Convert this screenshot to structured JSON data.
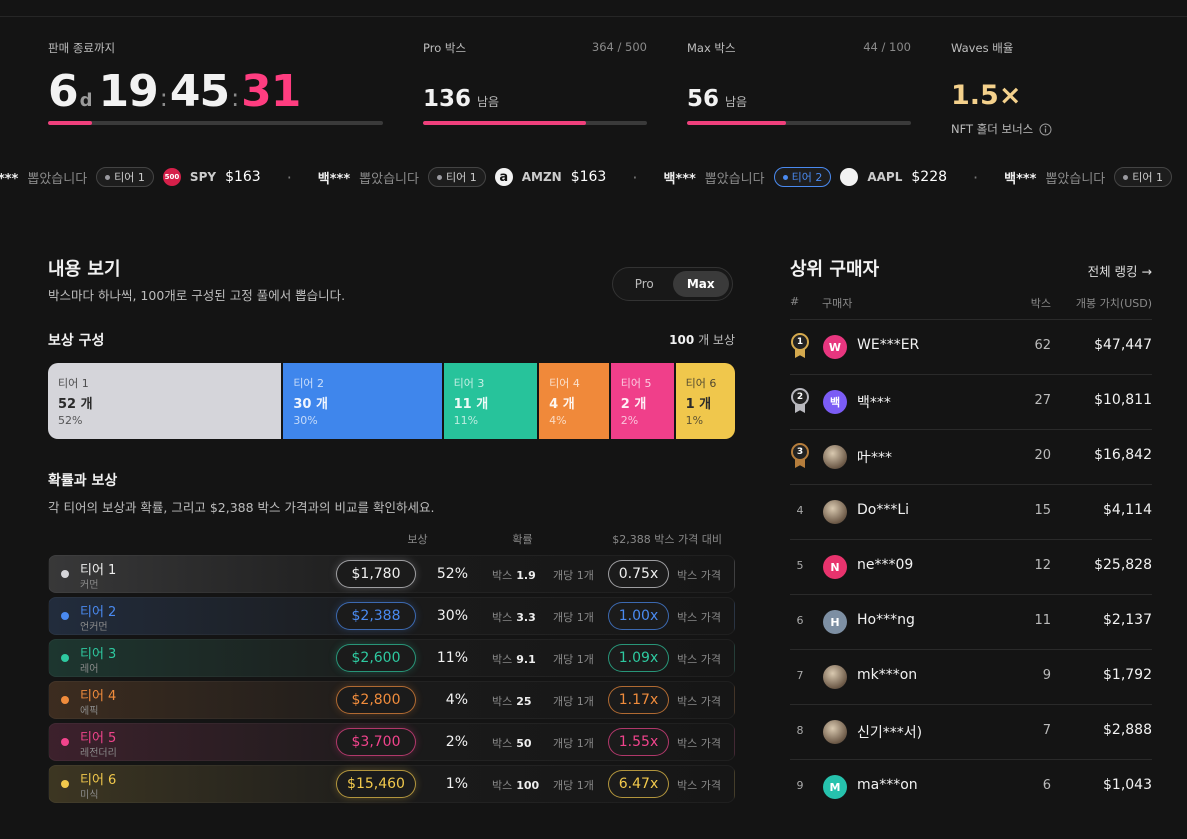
{
  "header": {
    "countdown": {
      "label": "판매 종료까지",
      "days": "6",
      "days_unit": "d",
      "hours": "19",
      "separator": ":",
      "minutes": "45",
      "seconds": "31"
    },
    "pro": {
      "label": "Pro 박스",
      "sold": 364,
      "of": "/",
      "total": 500,
      "remaining": 136,
      "remaining_unit": "남음"
    },
    "max": {
      "label": "Max 박스",
      "sold": 44,
      "of": "/",
      "total": 100,
      "remaining": 56,
      "remaining_unit": "남음"
    },
    "waves": {
      "label": "Waves 배율",
      "multiplier": "1.5×",
      "note": "NFT 홀더 보너스"
    }
  },
  "ticker": {
    "separator": "·",
    "items": [
      {
        "user": "백***",
        "action": "뽑았습니다",
        "tier": "티어 1",
        "tier_color": "#9a9aa0",
        "logo": "500",
        "logo_color": "#d6204a",
        "symbol": "SPY",
        "price": "$163"
      },
      {
        "user": "백***",
        "action": "뽑았습니다",
        "tier": "티어 1",
        "tier_color": "#9a9aa0",
        "logo": "a",
        "logo_color": "#f2f2f2",
        "symbol": "AMZN",
        "price": "$163"
      },
      {
        "user": "백***",
        "action": "뽑았습니다",
        "tier": "티어 2",
        "tier_color": "#4a8af0",
        "logo_color": "#f2f2f2",
        "symbol": "AAPL",
        "price": "$228"
      },
      {
        "user": "백***",
        "action": "뽑았습니다",
        "tier": "티어 1",
        "tier_color": "#9a9aa0"
      }
    ]
  },
  "contents": {
    "title": "내용 보기",
    "subtitle": "박스마다 하나씩, 100개로 구성된 고정 풀에서 뽑습니다.",
    "toggle": [
      "Pro",
      "Max"
    ],
    "composition": {
      "title": "보상 구성",
      "total": 100,
      "total_unit": "개 보상",
      "count_unit": "개",
      "segments": [
        {
          "tier": "티어 1",
          "count": 52,
          "share": "52%",
          "color": "#d5d5da"
        },
        {
          "tier": "티어 2",
          "count": 30,
          "share": "30%",
          "color": "#3f86ec"
        },
        {
          "tier": "티어 3",
          "count": 11,
          "share": "11%",
          "color": "#27c39b"
        },
        {
          "tier": "티어 4",
          "count": 4,
          "share": "4%",
          "color": "#f0893a"
        },
        {
          "tier": "티어 5",
          "count": 2,
          "share": "2%",
          "color": "#f03f8a"
        },
        {
          "tier": "티어 6",
          "count": 1,
          "share": "1%",
          "color": "#f0c74c"
        }
      ]
    }
  },
  "odds": {
    "title": "확률과 보상",
    "subtitle": "각 티어의 보상과 확률, 그리고 $2,388 박스 가격과의 비교를 확인하세요.",
    "columns": [
      "보상",
      "확률",
      "$2,388 박스 가격 대비"
    ],
    "box_label": "박스",
    "per_label": "개당 1개",
    "ratio_label": "박스 가격",
    "rows": [
      {
        "tier": "티어 1",
        "rarity": "커먼",
        "reward": "$1,780",
        "probability": "52%",
        "boxes": "1.9",
        "ratio": "0.75x",
        "color": "#d5d5da"
      },
      {
        "tier": "티어 2",
        "rarity": "언커먼",
        "reward": "$2,388",
        "probability": "30%",
        "boxes": "3.3",
        "ratio": "1.00x",
        "color": "#4a8af0"
      },
      {
        "tier": "티어 3",
        "rarity": "레어",
        "reward": "$2,600",
        "probability": "11%",
        "boxes": "9.1",
        "ratio": "1.09x",
        "color": "#2ec9a0"
      },
      {
        "tier": "티어 4",
        "rarity": "에픽",
        "reward": "$2,800",
        "probability": "4%",
        "boxes": "25",
        "ratio": "1.17x",
        "color": "#f08c3c"
      },
      {
        "tier": "티어 5",
        "rarity": "레전더리",
        "reward": "$3,700",
        "probability": "2%",
        "boxes": "50",
        "ratio": "1.55x",
        "color": "#f0448c"
      },
      {
        "tier": "티어 6",
        "rarity": "미식",
        "reward": "$15,460",
        "probability": "1%",
        "boxes": "100",
        "ratio": "6.47x",
        "color": "#f2c94c"
      }
    ]
  },
  "ranking": {
    "title": "상위 구매자",
    "link": "전체 랭킹 →",
    "columns": [
      "#",
      "구매자",
      "박스",
      "개봉 가치(USD)"
    ],
    "rows": [
      {
        "rank": 1,
        "avatar": "W",
        "avatar_color": "#e8367f",
        "name": "WE***ER",
        "boxes": 62,
        "value": "$47,447"
      },
      {
        "rank": 2,
        "avatar": "백",
        "avatar_color": "#7b5cf5",
        "name": "백***",
        "boxes": 27,
        "value": "$10,811"
      },
      {
        "rank": 3,
        "name": "叶***",
        "boxes": 20,
        "value": "$16,842"
      },
      {
        "rank": 4,
        "name": "Do***Li",
        "boxes": 15,
        "value": "$4,114"
      },
      {
        "rank": 5,
        "avatar": "N",
        "avatar_color": "#e8336d",
        "name": "ne***09",
        "boxes": 12,
        "value": "$25,828"
      },
      {
        "rank": 6,
        "avatar": "H",
        "avatar_color": "#7d8fa3",
        "name": "Ho***ng",
        "boxes": 11,
        "value": "$2,137"
      },
      {
        "rank": 7,
        "name": "mk***on",
        "boxes": 9,
        "value": "$1,792"
      },
      {
        "rank": 8,
        "name": "신기***서)",
        "boxes": 7,
        "value": "$2,888"
      },
      {
        "rank": 9,
        "avatar": "M",
        "avatar_color": "#26c2ad",
        "name": "ma***on",
        "boxes": 6,
        "value": "$1,043"
      }
    ]
  }
}
